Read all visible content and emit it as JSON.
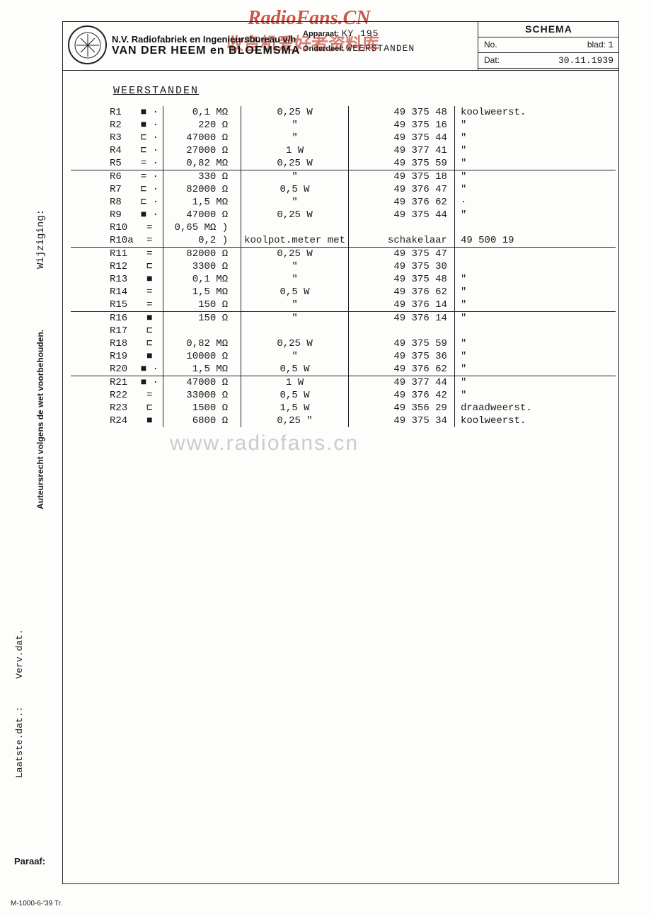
{
  "watermarks": {
    "top": "RadioFans.CN",
    "cn": "收音机爱好者资料库",
    "bottom": "www.radiofans.cn"
  },
  "header": {
    "company_line1": "N.V. Radiofabriek en Ingenieursbureau v/h",
    "company_line2": "VAN DER HEEM en BLOEMSMA",
    "apparaat_label": "Apparaat:",
    "apparaat_value": "KY 195",
    "onderdeel_label": "Onderdeel:",
    "onderdeel_value": "WEERSTANDEN",
    "schema": "SCHEMA",
    "no_label": "No.",
    "blad_label": "blad:",
    "blad_value": "1",
    "dat_label": "Dat:",
    "dat_value": "30.11.1939"
  },
  "section_title": "WEERSTANDEN",
  "side": {
    "auteursrecht": "Auteursrecht volgens de wet voorbehouden.",
    "wijziging": "Wijziging:",
    "laatste": "Laatste.dat.:",
    "verv": "Verv.dat.",
    "paraaf": "Paraaf:",
    "footnote": "M-1000-6-'39 Tr."
  },
  "columns": [
    "ref",
    "sym",
    "value",
    "power",
    "code",
    "note"
  ],
  "rows": [
    {
      "ref": "R1",
      "sym": "■  ·",
      "value": "0,1 MΩ",
      "power": "0,25 W",
      "code": "49 375 48",
      "note": "koolweerst."
    },
    {
      "ref": "R2",
      "sym": "■  ·",
      "value": "220  Ω",
      "power": "\"",
      "code": "49 375 16",
      "note": "\""
    },
    {
      "ref": "R3",
      "sym": "⊏  ·",
      "value": "47000  Ω",
      "power": "\"",
      "code": "49 375 44",
      "note": "\""
    },
    {
      "ref": "R4",
      "sym": "⊏  ·",
      "value": "27000  Ω",
      "power": "1    W",
      "code": "49 377 41",
      "note": "\""
    },
    {
      "ref": "R5",
      "sym": "=  ·",
      "value": "0,82 MΩ",
      "power": "0,25 W",
      "code": "49 375 59",
      "note": "\""
    },
    {
      "hr": true,
      "ref": "R6",
      "sym": "=  ·",
      "value": "330  Ω",
      "power": "\"",
      "code": "49 375 18",
      "note": "\""
    },
    {
      "ref": "R7",
      "sym": "⊏  ·",
      "value": "82000  Ω",
      "power": "0,5  W",
      "code": "49 376 47",
      "note": "\""
    },
    {
      "ref": "R8",
      "sym": "⊏  ·",
      "value": "1,5 MΩ",
      "power": "\"",
      "code": "49 376 62",
      "note": "·"
    },
    {
      "ref": "R9",
      "sym": "■  ·",
      "value": "47000  Ω",
      "power": "0,25 W",
      "code": "49 375 44",
      "note": "\""
    },
    {
      "ref": "R10",
      "sym": "=",
      "value": "0,65 MΩ )",
      "power": "",
      "code": "",
      "note": ""
    },
    {
      "ref": "R10a",
      "sym": "=",
      "value": "0,2    )",
      "power": "koolpot.meter met",
      "code": "schakelaar",
      "note": "49 500 19"
    },
    {
      "hr": true,
      "ref": "R11",
      "sym": "=",
      "value": "82000  Ω",
      "power": "0,25 W",
      "code": "49 375 47",
      "note": ""
    },
    {
      "ref": "R12",
      "sym": "⊏",
      "value": "3300  Ω",
      "power": "\"",
      "code": "49 375 30",
      "note": ""
    },
    {
      "ref": "R13",
      "sym": "■",
      "value": "0,1 MΩ",
      "power": "\"",
      "code": "49 375 48",
      "note": "\""
    },
    {
      "ref": "R14",
      "sym": "=",
      "value": "1,5 MΩ",
      "power": "0,5  W",
      "code": "49 376 62",
      "note": "\""
    },
    {
      "ref": "R15",
      "sym": "=",
      "value": "150  Ω",
      "power": "\"",
      "code": "49 376 14",
      "note": "\""
    },
    {
      "hr": true,
      "ref": "R16",
      "sym": "■",
      "value": "150  Ω",
      "power": "\"",
      "code": "49 376 14",
      "note": "\""
    },
    {
      "ref": "R17",
      "sym": "⊏",
      "value": "",
      "power": "",
      "code": "",
      "note": ""
    },
    {
      "ref": "R18",
      "sym": "⊏",
      "value": "0,82 MΩ",
      "power": "0,25 W",
      "code": "49 375 59",
      "note": "\""
    },
    {
      "ref": "R19",
      "sym": "■",
      "value": "10000  Ω",
      "power": "\"",
      "code": "49 375 36",
      "note": "\""
    },
    {
      "ref": "R20",
      "sym": "■  ·",
      "value": "1,5 MΩ",
      "power": "0,5  W",
      "code": "49 376 62",
      "note": "\""
    },
    {
      "hr": true,
      "ref": "R21",
      "sym": "■  ·",
      "value": "47000  Ω",
      "power": "1    W",
      "code": "49 377 44",
      "note": "\""
    },
    {
      "ref": "R22",
      "sym": "=",
      "value": "33000  Ω",
      "power": "0,5  W",
      "code": "49 376 42",
      "note": "\""
    },
    {
      "ref": "R23",
      "sym": "⊏",
      "value": "1500  Ω",
      "power": "1,5  W",
      "code": "49 356 29",
      "note": "draadweerst."
    },
    {
      "ref": "R24",
      "sym": "■",
      "value": "6800  Ω",
      "power": "0,25 \"",
      "code": "49 375 34",
      "note": "koolweerst."
    }
  ],
  "style": {
    "page_bg": "#fdfdfc",
    "ink": "#1a1a1a",
    "watermark_red": "#c0392b",
    "watermark_grey": "#cccccc",
    "font_mono": "Courier New",
    "font_sans": "Arial",
    "base_fontsize_pt": 11,
    "border_color": "#222222"
  }
}
